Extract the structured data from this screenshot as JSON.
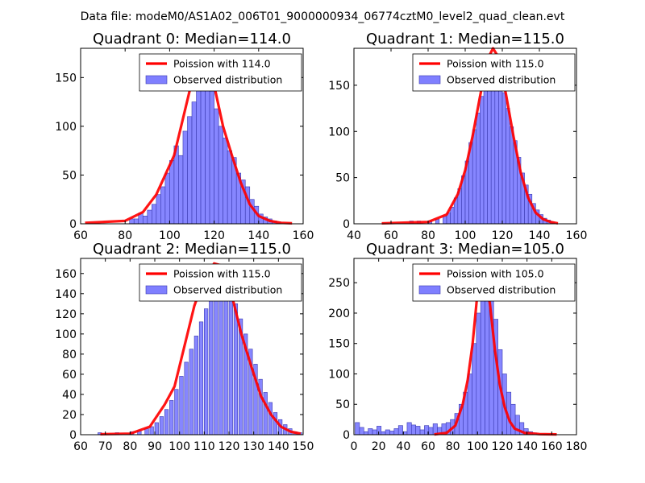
{
  "figure_title": "Data file: modeM0/AS1A02_006T01_9000000934_06774cztM0_level2_quad_clean.evt",
  "colors": {
    "bars": "#7f7fff",
    "bar_edge": "#3a3ab0",
    "curve": "#ff0000"
  },
  "chart_data": [
    {
      "type": "bar",
      "title": "Quadrant 0: Median=114.0",
      "xlim": [
        60,
        160
      ],
      "ylim": [
        0,
        180
      ],
      "xticks": [
        60,
        80,
        100,
        120,
        140,
        160
      ],
      "yticks": [
        0,
        50,
        100,
        150
      ],
      "legend": [
        "Poission with 114.0",
        "Observed distribution"
      ],
      "legend_position": "top-right",
      "bin_width": 2,
      "bins": [
        [
          82,
          5
        ],
        [
          84,
          5
        ],
        [
          86,
          11
        ],
        [
          88,
          8
        ],
        [
          90,
          14
        ],
        [
          92,
          20
        ],
        [
          94,
          30
        ],
        [
          96,
          38
        ],
        [
          98,
          52
        ],
        [
          100,
          65
        ],
        [
          102,
          80
        ],
        [
          104,
          70
        ],
        [
          106,
          95
        ],
        [
          108,
          110
        ],
        [
          110,
          125
        ],
        [
          112,
          138
        ],
        [
          114,
          150
        ],
        [
          116,
          142
        ],
        [
          118,
          136
        ],
        [
          120,
          118
        ],
        [
          122,
          100
        ],
        [
          124,
          88
        ],
        [
          126,
          75
        ],
        [
          128,
          68
        ],
        [
          130,
          52
        ],
        [
          132,
          45
        ],
        [
          134,
          38
        ],
        [
          136,
          25
        ],
        [
          138,
          18
        ],
        [
          140,
          10
        ],
        [
          142,
          7
        ],
        [
          144,
          5
        ],
        [
          146,
          3
        ],
        [
          148,
          2
        ]
      ],
      "curve": [
        [
          62,
          1
        ],
        [
          80,
          3
        ],
        [
          88,
          12
        ],
        [
          94,
          30
        ],
        [
          98,
          50
        ],
        [
          102,
          70
        ],
        [
          106,
          108
        ],
        [
          110,
          146
        ],
        [
          113,
          168
        ],
        [
          116,
          165
        ],
        [
          120,
          142
        ],
        [
          124,
          100
        ],
        [
          128,
          70
        ],
        [
          132,
          42
        ],
        [
          136,
          20
        ],
        [
          140,
          8
        ],
        [
          145,
          3
        ],
        [
          150,
          1
        ],
        [
          155,
          0.5
        ]
      ]
    },
    {
      "type": "bar",
      "title": "Quadrant 1: Median=115.0",
      "xlim": [
        40,
        160
      ],
      "ylim": [
        0,
        190
      ],
      "xticks": [
        40,
        60,
        80,
        100,
        120,
        140,
        160
      ],
      "yticks": [
        0,
        50,
        100,
        150
      ],
      "legend": [
        "Poission with 115.0",
        "Observed distribution"
      ],
      "legend_position": "top-right",
      "bin_width": 2,
      "bins": [
        [
          70,
          3
        ],
        [
          74,
          3
        ],
        [
          80,
          3
        ],
        [
          84,
          5
        ],
        [
          88,
          8
        ],
        [
          90,
          12
        ],
        [
          92,
          18
        ],
        [
          94,
          28
        ],
        [
          96,
          38
        ],
        [
          98,
          52
        ],
        [
          100,
          68
        ],
        [
          102,
          88
        ],
        [
          104,
          102
        ],
        [
          106,
          120
        ],
        [
          108,
          138
        ],
        [
          110,
          155
        ],
        [
          112,
          170
        ],
        [
          114,
          180
        ],
        [
          116,
          175
        ],
        [
          118,
          160
        ],
        [
          120,
          142
        ],
        [
          122,
          125
        ],
        [
          124,
          105
        ],
        [
          126,
          90
        ],
        [
          128,
          72
        ],
        [
          130,
          55
        ],
        [
          132,
          42
        ],
        [
          134,
          32
        ],
        [
          136,
          22
        ],
        [
          138,
          15
        ],
        [
          140,
          10
        ],
        [
          142,
          6
        ],
        [
          144,
          4
        ],
        [
          146,
          2
        ]
      ],
      "curve": [
        [
          55,
          0.5
        ],
        [
          80,
          2
        ],
        [
          90,
          10
        ],
        [
          96,
          32
        ],
        [
          100,
          58
        ],
        [
          104,
          95
        ],
        [
          108,
          138
        ],
        [
          112,
          178
        ],
        [
          115,
          190
        ],
        [
          118,
          180
        ],
        [
          122,
          140
        ],
        [
          126,
          95
        ],
        [
          130,
          55
        ],
        [
          134,
          28
        ],
        [
          138,
          12
        ],
        [
          142,
          5
        ],
        [
          146,
          2
        ],
        [
          150,
          0.5
        ]
      ]
    },
    {
      "type": "bar",
      "title": "Quadrant 2: Median=115.0",
      "xlim": [
        60,
        150
      ],
      "ylim": [
        0,
        175
      ],
      "xticks": [
        60,
        70,
        80,
        90,
        100,
        110,
        120,
        130,
        140,
        150
      ],
      "yticks": [
        0,
        20,
        40,
        60,
        80,
        100,
        120,
        140,
        160
      ],
      "legend": [
        "Poission with 115.0",
        "Observed distribution"
      ],
      "legend_position": "top-right",
      "bin_width": 1.5,
      "bins": [
        [
          67,
          2
        ],
        [
          74,
          2
        ],
        [
          80,
          3
        ],
        [
          83,
          4
        ],
        [
          86,
          6
        ],
        [
          88,
          8
        ],
        [
          90,
          12
        ],
        [
          92,
          18
        ],
        [
          94,
          25
        ],
        [
          96,
          34
        ],
        [
          98,
          45
        ],
        [
          100,
          58
        ],
        [
          102,
          72
        ],
        [
          104,
          85
        ],
        [
          106,
          98
        ],
        [
          108,
          112
        ],
        [
          110,
          125
        ],
        [
          112,
          138
        ],
        [
          114,
          150
        ],
        [
          116,
          158
        ],
        [
          118,
          155
        ],
        [
          120,
          145
        ],
        [
          122,
          130
        ],
        [
          124,
          115
        ],
        [
          126,
          100
        ],
        [
          128,
          85
        ],
        [
          130,
          70
        ],
        [
          132,
          55
        ],
        [
          134,
          42
        ],
        [
          136,
          32
        ],
        [
          138,
          22
        ],
        [
          140,
          15
        ],
        [
          142,
          10
        ],
        [
          144,
          6
        ],
        [
          146,
          3
        ],
        [
          148,
          2
        ]
      ],
      "curve": [
        [
          68,
          0.5
        ],
        [
          80,
          1
        ],
        [
          88,
          8
        ],
        [
          94,
          30
        ],
        [
          98,
          48
        ],
        [
          102,
          88
        ],
        [
          106,
          128
        ],
        [
          110,
          155
        ],
        [
          114,
          170
        ],
        [
          117,
          168
        ],
        [
          121,
          140
        ],
        [
          125,
          100
        ],
        [
          129,
          68
        ],
        [
          133,
          38
        ],
        [
          137,
          20
        ],
        [
          141,
          8
        ],
        [
          145,
          3
        ],
        [
          149,
          1
        ]
      ]
    },
    {
      "type": "bar",
      "title": "Quadrant 3: Median=105.0",
      "xlim": [
        0,
        180
      ],
      "ylim": [
        0,
        290
      ],
      "xticks": [
        0,
        20,
        40,
        60,
        80,
        100,
        120,
        140,
        160,
        180
      ],
      "yticks": [
        0,
        50,
        100,
        150,
        200,
        250
      ],
      "legend": [
        "Poission with 105.0",
        "Observed distribution"
      ],
      "legend_position": "top-right",
      "bin_width": 3.5,
      "bins": [
        [
          1,
          20
        ],
        [
          4.5,
          12
        ],
        [
          8,
          5
        ],
        [
          11.5,
          10
        ],
        [
          15,
          8
        ],
        [
          18.5,
          14
        ],
        [
          22,
          5
        ],
        [
          25.5,
          8
        ],
        [
          29,
          6
        ],
        [
          32.5,
          10
        ],
        [
          36,
          15
        ],
        [
          39.5,
          5
        ],
        [
          43,
          20
        ],
        [
          46.5,
          16
        ],
        [
          50,
          14
        ],
        [
          53.5,
          8
        ],
        [
          57,
          15
        ],
        [
          60.5,
          12
        ],
        [
          64,
          18
        ],
        [
          67.5,
          12
        ],
        [
          71,
          18
        ],
        [
          74.5,
          20
        ],
        [
          78,
          25
        ],
        [
          81.5,
          35
        ],
        [
          85,
          50
        ],
        [
          88.5,
          70
        ],
        [
          92,
          100
        ],
        [
          95.5,
          150
        ],
        [
          99,
          200
        ],
        [
          102.5,
          245
        ],
        [
          106,
          260
        ],
        [
          109.5,
          235
        ],
        [
          113,
          190
        ],
        [
          116.5,
          140
        ],
        [
          120,
          100
        ],
        [
          123.5,
          70
        ],
        [
          127,
          50
        ],
        [
          130.5,
          32
        ],
        [
          134,
          20
        ],
        [
          137.5,
          10
        ],
        [
          141,
          5
        ],
        [
          144.5,
          3
        ]
      ],
      "curve": [
        [
          65,
          0.5
        ],
        [
          75,
          3
        ],
        [
          82,
          15
        ],
        [
          88,
          50
        ],
        [
          92,
          90
        ],
        [
          96,
          150
        ],
        [
          100,
          235
        ],
        [
          103,
          270
        ],
        [
          106,
          262
        ],
        [
          110,
          215
        ],
        [
          114,
          140
        ],
        [
          118,
          82
        ],
        [
          122,
          45
        ],
        [
          126,
          22
        ],
        [
          130,
          10
        ],
        [
          138,
          3
        ],
        [
          150,
          1
        ],
        [
          164,
          0.5
        ]
      ]
    }
  ]
}
